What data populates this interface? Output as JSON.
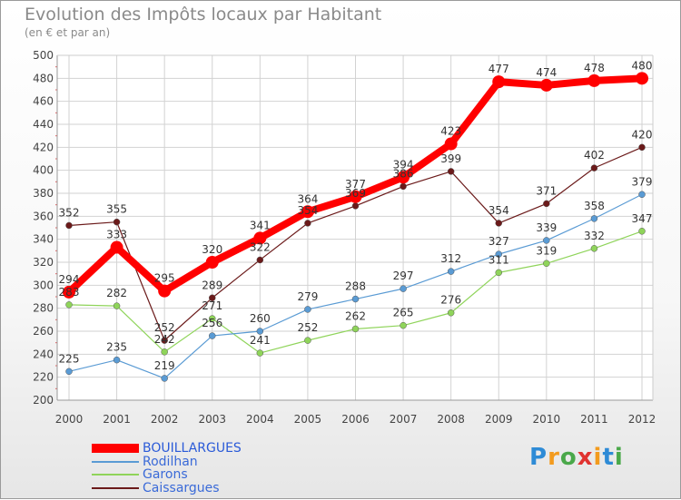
{
  "header": {
    "title": "Evolution des Impôts locaux par Habitant",
    "subtitle": "(en € et par an)"
  },
  "logo": {
    "letters": [
      "P",
      "r",
      "o",
      "x",
      "i",
      "t",
      "i"
    ],
    "colors": [
      "#2e8bd6",
      "#f39b1e",
      "#4aa84a",
      "#e0322f",
      "#f39b1e",
      "#2e8bd6",
      "#4aa84a"
    ]
  },
  "chart_data": {
    "type": "line",
    "x": [
      "2000",
      "2001",
      "2002",
      "2003",
      "2004",
      "2005",
      "2006",
      "2007",
      "2008",
      "2009",
      "2010",
      "2011",
      "2012"
    ],
    "ylim": [
      200,
      500
    ],
    "yticks": [
      200,
      220,
      240,
      260,
      280,
      300,
      320,
      340,
      360,
      380,
      400,
      420,
      440,
      460,
      480,
      500
    ],
    "grid": true,
    "legend_position": "bottom-left",
    "series": [
      {
        "name": "BOUILLARGUES",
        "color": "#ff0000",
        "values": [
          294,
          333,
          295,
          320,
          341,
          364,
          377,
          394,
          423,
          477,
          474,
          478,
          480
        ]
      },
      {
        "name": "Rodilhan",
        "color": "#5a9bd4",
        "values": [
          225,
          235,
          219,
          256,
          260,
          279,
          288,
          297,
          312,
          327,
          339,
          358,
          379
        ]
      },
      {
        "name": "Garons",
        "color": "#8fd45a",
        "values": [
          283,
          282,
          242,
          271,
          241,
          252,
          262,
          265,
          276,
          311,
          319,
          332,
          347
        ]
      },
      {
        "name": "Caissargues",
        "color": "#6b1a1a",
        "values": [
          352,
          355,
          252,
          289,
          322,
          354,
          369,
          386,
          399,
          354,
          371,
          402,
          420
        ]
      }
    ]
  }
}
